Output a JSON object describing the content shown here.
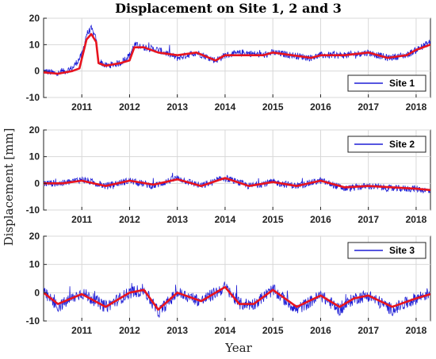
{
  "figure": {
    "title": "Displacement on Site 1, 2 and 3",
    "ylabel": "Displacement [mm]",
    "xlabel": "Year"
  },
  "colors": {
    "raw": "#1f1fd6",
    "smooth": "#e8141e"
  },
  "chart_data": [
    {
      "type": "line",
      "legend": "Site 1",
      "legend_position": "bottom-right",
      "grid": true,
      "xlim": [
        2010.2,
        2018.3
      ],
      "ylim": [
        -10,
        20
      ],
      "yticks": [
        -10,
        0,
        10,
        20
      ],
      "xticks": [
        2011,
        2012,
        2013,
        2014,
        2015,
        2016,
        2017,
        2018
      ],
      "series": [
        {
          "name": "Site 1",
          "style": "raw",
          "x": [
            2010.2,
            2010.5,
            2010.8,
            2011.0,
            2011.1,
            2011.2,
            2011.3,
            2011.35,
            2011.5,
            2011.8,
            2012.0,
            2012.1,
            2012.3,
            2012.6,
            2013.0,
            2013.4,
            2013.8,
            2014.0,
            2014.4,
            2014.8,
            2015.0,
            2015.4,
            2015.8,
            2016.0,
            2016.5,
            2017.0,
            2017.4,
            2017.8,
            2018.0,
            2018.3
          ],
          "y": [
            0,
            -1,
            1,
            6,
            14,
            16,
            12,
            4,
            2,
            3,
            6,
            10,
            9,
            8,
            5,
            7,
            4,
            6,
            7,
            6,
            7,
            6,
            5,
            6,
            6,
            7,
            5,
            6,
            8,
            11
          ]
        },
        {
          "name": "",
          "style": "smooth",
          "x": [
            2010.2,
            2010.5,
            2010.8,
            2010.95,
            2011.1,
            2011.2,
            2011.3,
            2011.35,
            2011.5,
            2011.8,
            2012.0,
            2012.1,
            2012.3,
            2012.6,
            2013.0,
            2013.4,
            2013.8,
            2014.0,
            2014.4,
            2014.8,
            2015.0,
            2015.4,
            2015.8,
            2016.0,
            2016.5,
            2017.0,
            2017.4,
            2017.8,
            2018.0,
            2018.3
          ],
          "y": [
            -0.5,
            -1,
            0,
            1,
            12,
            14,
            11,
            3,
            2,
            3,
            4,
            9,
            9,
            7,
            6,
            7,
            4,
            6,
            6,
            6,
            7,
            6,
            5,
            6,
            6,
            7,
            5,
            6,
            8,
            10
          ]
        }
      ]
    },
    {
      "type": "line",
      "legend": "Site 2",
      "legend_position": "top-right",
      "grid": true,
      "xlim": [
        2010.2,
        2018.3
      ],
      "ylim": [
        -10,
        20
      ],
      "yticks": [
        -10,
        0,
        10,
        20
      ],
      "xticks": [
        2011,
        2012,
        2013,
        2014,
        2015,
        2016,
        2017,
        2018
      ],
      "series": [
        {
          "name": "Site 2",
          "style": "raw",
          "x": [
            2010.2,
            2010.6,
            2011.0,
            2011.5,
            2012.0,
            2012.5,
            2013.0,
            2013.5,
            2014.0,
            2014.5,
            2015.0,
            2015.5,
            2016.0,
            2016.5,
            2017.0,
            2017.5,
            2018.0,
            2018.3
          ],
          "y": [
            0,
            0,
            1.5,
            -1,
            1,
            -1,
            2,
            -1,
            2,
            -1,
            0.5,
            -1,
            1,
            -2,
            -1,
            -2,
            -2,
            -3
          ]
        },
        {
          "name": "",
          "style": "smooth",
          "x": [
            2010.2,
            2010.6,
            2011.0,
            2011.5,
            2012.0,
            2012.5,
            2013.0,
            2013.5,
            2014.0,
            2014.5,
            2015.0,
            2015.5,
            2016.0,
            2016.5,
            2017.0,
            2017.5,
            2018.0,
            2018.3
          ],
          "y": [
            0,
            0,
            1,
            -1,
            1,
            -0.5,
            1.5,
            -1,
            2,
            -1,
            0.5,
            -1,
            1,
            -1.5,
            -1,
            -1.5,
            -2,
            -2.5
          ]
        }
      ]
    },
    {
      "type": "line",
      "legend": "Site 3",
      "legend_position": "top-right",
      "grid": true,
      "xlim": [
        2010.2,
        2018.3
      ],
      "ylim": [
        -10,
        20
      ],
      "yticks": [
        -10,
        0,
        10,
        20
      ],
      "xticks": [
        2011,
        2012,
        2013,
        2014,
        2015,
        2016,
        2017,
        2018
      ],
      "series": [
        {
          "name": "Site 3",
          "style": "raw",
          "x": [
            2010.2,
            2010.5,
            2011.0,
            2011.5,
            2012.0,
            2012.3,
            2012.6,
            2013.0,
            2013.5,
            2014.0,
            2014.3,
            2014.6,
            2015.0,
            2015.5,
            2016.0,
            2016.4,
            2016.7,
            2017.0,
            2017.5,
            2018.0,
            2018.3
          ],
          "y": [
            0,
            -5,
            0,
            -5,
            0,
            1,
            -7,
            0,
            -3,
            2,
            -4,
            -4,
            1,
            -6,
            -1,
            -6,
            -2,
            -1,
            -6,
            -2,
            0
          ]
        },
        {
          "name": "",
          "style": "smooth",
          "x": [
            2010.2,
            2010.5,
            2011.0,
            2011.5,
            2012.0,
            2012.3,
            2012.6,
            2013.0,
            2013.5,
            2014.0,
            2014.3,
            2014.6,
            2015.0,
            2015.5,
            2016.0,
            2016.4,
            2016.7,
            2017.0,
            2017.5,
            2018.0,
            2018.3
          ],
          "y": [
            0,
            -4,
            -0.5,
            -5,
            0,
            1,
            -6,
            0,
            -3,
            2,
            -4,
            -4,
            1,
            -5,
            -1,
            -5,
            -2,
            -1,
            -5,
            -2,
            -0.5
          ]
        }
      ]
    }
  ]
}
